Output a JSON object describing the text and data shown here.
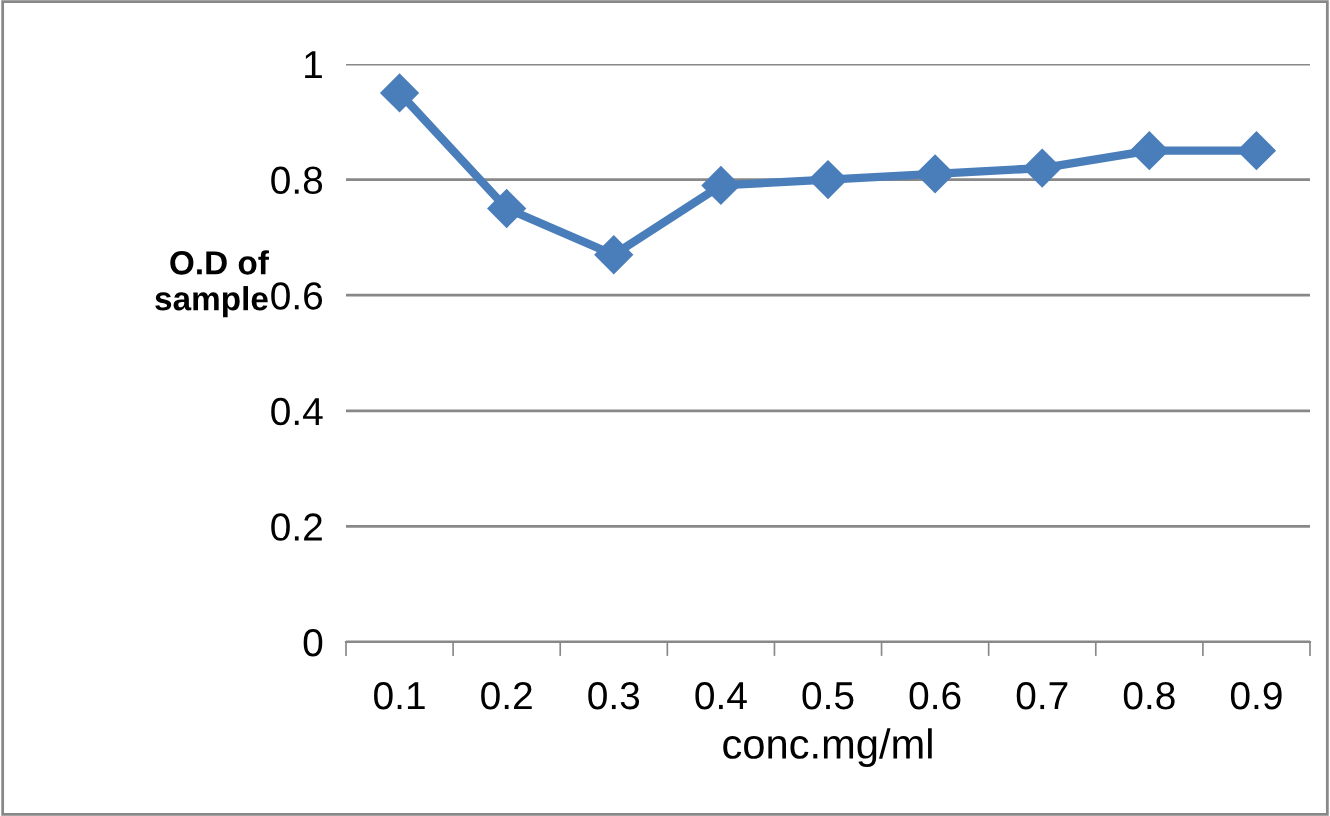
{
  "chart_data": {
    "type": "line",
    "xlabel": "conc.mg/ml",
    "ylabel": "O.D of\nsample",
    "categories": [
      "0.1",
      "0.2",
      "0.3",
      "0.4",
      "0.5",
      "0.6",
      "0.7",
      "0.8",
      "0.9"
    ],
    "series": [
      {
        "color": "#4a7ebb",
        "values": [
          0.95,
          0.75,
          0.67,
          0.79,
          0.8,
          0.81,
          0.82,
          0.85,
          0.85
        ]
      }
    ],
    "ylim": [
      0,
      1
    ],
    "yticks": [
      0,
      0.2,
      0.4,
      0.6,
      0.8,
      1
    ],
    "grid": "y",
    "legend": false,
    "marker": "diamond",
    "line_style": "solid"
  }
}
